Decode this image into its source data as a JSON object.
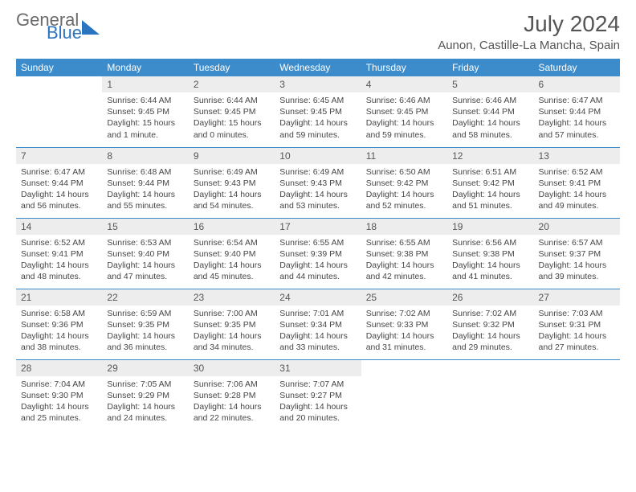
{
  "logo": {
    "word1": "General",
    "word2": "Blue"
  },
  "header": {
    "month_title": "July 2024",
    "location": "Aunon, Castille-La Mancha, Spain"
  },
  "weekday_labels": [
    "Sunday",
    "Monday",
    "Tuesday",
    "Wednesday",
    "Thursday",
    "Friday",
    "Saturday"
  ],
  "colors": {
    "header_bg": "#3c8ccc",
    "daynum_bg": "#ededed",
    "accent": "#2b74c0"
  },
  "weeks": [
    [
      {
        "num": "",
        "sunrise": "",
        "sunset": "",
        "daylight": ""
      },
      {
        "num": "1",
        "sunrise": "Sunrise: 6:44 AM",
        "sunset": "Sunset: 9:45 PM",
        "daylight": "Daylight: 15 hours and 1 minute."
      },
      {
        "num": "2",
        "sunrise": "Sunrise: 6:44 AM",
        "sunset": "Sunset: 9:45 PM",
        "daylight": "Daylight: 15 hours and 0 minutes."
      },
      {
        "num": "3",
        "sunrise": "Sunrise: 6:45 AM",
        "sunset": "Sunset: 9:45 PM",
        "daylight": "Daylight: 14 hours and 59 minutes."
      },
      {
        "num": "4",
        "sunrise": "Sunrise: 6:46 AM",
        "sunset": "Sunset: 9:45 PM",
        "daylight": "Daylight: 14 hours and 59 minutes."
      },
      {
        "num": "5",
        "sunrise": "Sunrise: 6:46 AM",
        "sunset": "Sunset: 9:44 PM",
        "daylight": "Daylight: 14 hours and 58 minutes."
      },
      {
        "num": "6",
        "sunrise": "Sunrise: 6:47 AM",
        "sunset": "Sunset: 9:44 PM",
        "daylight": "Daylight: 14 hours and 57 minutes."
      }
    ],
    [
      {
        "num": "7",
        "sunrise": "Sunrise: 6:47 AM",
        "sunset": "Sunset: 9:44 PM",
        "daylight": "Daylight: 14 hours and 56 minutes."
      },
      {
        "num": "8",
        "sunrise": "Sunrise: 6:48 AM",
        "sunset": "Sunset: 9:44 PM",
        "daylight": "Daylight: 14 hours and 55 minutes."
      },
      {
        "num": "9",
        "sunrise": "Sunrise: 6:49 AM",
        "sunset": "Sunset: 9:43 PM",
        "daylight": "Daylight: 14 hours and 54 minutes."
      },
      {
        "num": "10",
        "sunrise": "Sunrise: 6:49 AM",
        "sunset": "Sunset: 9:43 PM",
        "daylight": "Daylight: 14 hours and 53 minutes."
      },
      {
        "num": "11",
        "sunrise": "Sunrise: 6:50 AM",
        "sunset": "Sunset: 9:42 PM",
        "daylight": "Daylight: 14 hours and 52 minutes."
      },
      {
        "num": "12",
        "sunrise": "Sunrise: 6:51 AM",
        "sunset": "Sunset: 9:42 PM",
        "daylight": "Daylight: 14 hours and 51 minutes."
      },
      {
        "num": "13",
        "sunrise": "Sunrise: 6:52 AM",
        "sunset": "Sunset: 9:41 PM",
        "daylight": "Daylight: 14 hours and 49 minutes."
      }
    ],
    [
      {
        "num": "14",
        "sunrise": "Sunrise: 6:52 AM",
        "sunset": "Sunset: 9:41 PM",
        "daylight": "Daylight: 14 hours and 48 minutes."
      },
      {
        "num": "15",
        "sunrise": "Sunrise: 6:53 AM",
        "sunset": "Sunset: 9:40 PM",
        "daylight": "Daylight: 14 hours and 47 minutes."
      },
      {
        "num": "16",
        "sunrise": "Sunrise: 6:54 AM",
        "sunset": "Sunset: 9:40 PM",
        "daylight": "Daylight: 14 hours and 45 minutes."
      },
      {
        "num": "17",
        "sunrise": "Sunrise: 6:55 AM",
        "sunset": "Sunset: 9:39 PM",
        "daylight": "Daylight: 14 hours and 44 minutes."
      },
      {
        "num": "18",
        "sunrise": "Sunrise: 6:55 AM",
        "sunset": "Sunset: 9:38 PM",
        "daylight": "Daylight: 14 hours and 42 minutes."
      },
      {
        "num": "19",
        "sunrise": "Sunrise: 6:56 AM",
        "sunset": "Sunset: 9:38 PM",
        "daylight": "Daylight: 14 hours and 41 minutes."
      },
      {
        "num": "20",
        "sunrise": "Sunrise: 6:57 AM",
        "sunset": "Sunset: 9:37 PM",
        "daylight": "Daylight: 14 hours and 39 minutes."
      }
    ],
    [
      {
        "num": "21",
        "sunrise": "Sunrise: 6:58 AM",
        "sunset": "Sunset: 9:36 PM",
        "daylight": "Daylight: 14 hours and 38 minutes."
      },
      {
        "num": "22",
        "sunrise": "Sunrise: 6:59 AM",
        "sunset": "Sunset: 9:35 PM",
        "daylight": "Daylight: 14 hours and 36 minutes."
      },
      {
        "num": "23",
        "sunrise": "Sunrise: 7:00 AM",
        "sunset": "Sunset: 9:35 PM",
        "daylight": "Daylight: 14 hours and 34 minutes."
      },
      {
        "num": "24",
        "sunrise": "Sunrise: 7:01 AM",
        "sunset": "Sunset: 9:34 PM",
        "daylight": "Daylight: 14 hours and 33 minutes."
      },
      {
        "num": "25",
        "sunrise": "Sunrise: 7:02 AM",
        "sunset": "Sunset: 9:33 PM",
        "daylight": "Daylight: 14 hours and 31 minutes."
      },
      {
        "num": "26",
        "sunrise": "Sunrise: 7:02 AM",
        "sunset": "Sunset: 9:32 PM",
        "daylight": "Daylight: 14 hours and 29 minutes."
      },
      {
        "num": "27",
        "sunrise": "Sunrise: 7:03 AM",
        "sunset": "Sunset: 9:31 PM",
        "daylight": "Daylight: 14 hours and 27 minutes."
      }
    ],
    [
      {
        "num": "28",
        "sunrise": "Sunrise: 7:04 AM",
        "sunset": "Sunset: 9:30 PM",
        "daylight": "Daylight: 14 hours and 25 minutes."
      },
      {
        "num": "29",
        "sunrise": "Sunrise: 7:05 AM",
        "sunset": "Sunset: 9:29 PM",
        "daylight": "Daylight: 14 hours and 24 minutes."
      },
      {
        "num": "30",
        "sunrise": "Sunrise: 7:06 AM",
        "sunset": "Sunset: 9:28 PM",
        "daylight": "Daylight: 14 hours and 22 minutes."
      },
      {
        "num": "31",
        "sunrise": "Sunrise: 7:07 AM",
        "sunset": "Sunset: 9:27 PM",
        "daylight": "Daylight: 14 hours and 20 minutes."
      },
      {
        "num": "",
        "sunrise": "",
        "sunset": "",
        "daylight": ""
      },
      {
        "num": "",
        "sunrise": "",
        "sunset": "",
        "daylight": ""
      },
      {
        "num": "",
        "sunrise": "",
        "sunset": "",
        "daylight": ""
      }
    ]
  ]
}
